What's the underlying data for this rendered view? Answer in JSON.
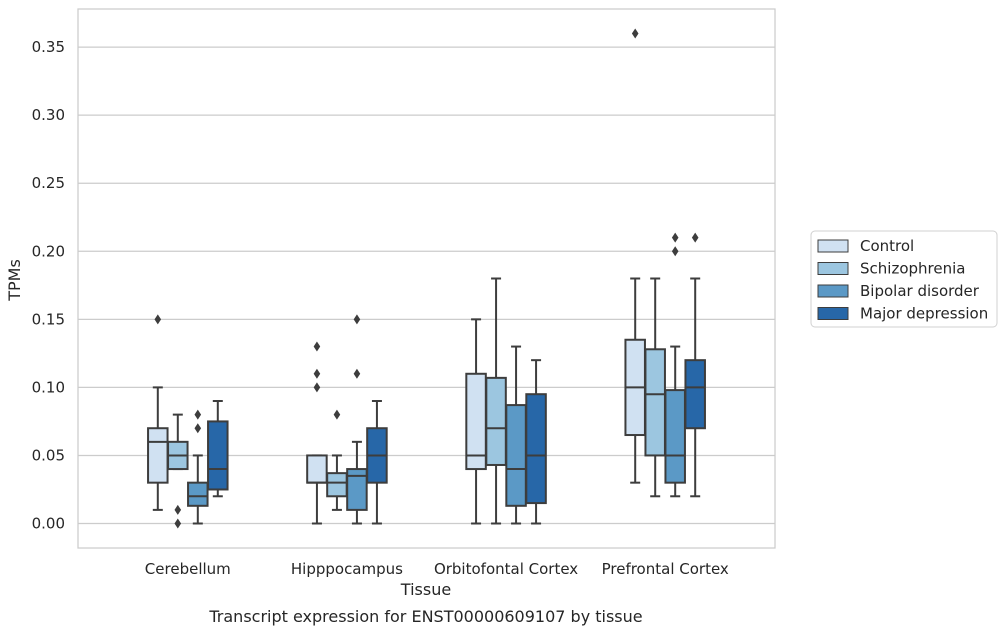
{
  "chart_data": {
    "type": "box",
    "title": "",
    "caption": "Transcript expression for ENST00000609107 by tissue",
    "xlabel": "Tissue",
    "ylabel": "TPMs",
    "ylim": [
      -0.018,
      0.378
    ],
    "yticks": [
      "0.00",
      "0.05",
      "0.10",
      "0.15",
      "0.20",
      "0.25",
      "0.30",
      "0.35"
    ],
    "ytick_values": [
      0,
      0.05,
      0.1,
      0.15,
      0.2,
      0.25,
      0.3,
      0.35
    ],
    "grid": "horizontal",
    "legend_position": "right",
    "categories": [
      "Cerebellum",
      "Hipppocampus",
      "Orbitofontal Cortex",
      "Prefrontal Cortex"
    ],
    "series": [
      {
        "name": "Control",
        "color": "#d0e1f2",
        "boxes": [
          {
            "whislo": 0.01,
            "q1": 0.03,
            "med": 0.06,
            "q3": 0.07,
            "whishi": 0.1,
            "fliers": [
              0.15
            ]
          },
          {
            "whislo": 0.0,
            "q1": 0.03,
            "med": 0.03,
            "q3": 0.05,
            "whishi": 0.05,
            "fliers": [
              0.1,
              0.11,
              0.13
            ]
          },
          {
            "whislo": 0.0,
            "q1": 0.04,
            "med": 0.05,
            "q3": 0.11,
            "whishi": 0.15,
            "fliers": []
          },
          {
            "whislo": 0.03,
            "q1": 0.065,
            "med": 0.1,
            "q3": 0.135,
            "whishi": 0.18,
            "fliers": [
              0.36
            ]
          }
        ]
      },
      {
        "name": "Schizophrenia",
        "color": "#9cc6e0",
        "boxes": [
          {
            "whislo": 0.04,
            "q1": 0.04,
            "med": 0.05,
            "q3": 0.06,
            "whishi": 0.08,
            "fliers": [
              0.0,
              0.01
            ]
          },
          {
            "whislo": 0.01,
            "q1": 0.02,
            "med": 0.03,
            "q3": 0.037,
            "whishi": 0.05,
            "fliers": [
              0.08
            ]
          },
          {
            "whislo": 0.0,
            "q1": 0.043,
            "med": 0.07,
            "q3": 0.107,
            "whishi": 0.18,
            "fliers": []
          },
          {
            "whislo": 0.02,
            "q1": 0.05,
            "med": 0.095,
            "q3": 0.128,
            "whishi": 0.18,
            "fliers": []
          }
        ]
      },
      {
        "name": "Bipolar disorder",
        "color": "#5b99c6",
        "boxes": [
          {
            "whislo": 0.0,
            "q1": 0.013,
            "med": 0.02,
            "q3": 0.03,
            "whishi": 0.05,
            "fliers": [
              0.07,
              0.08
            ]
          },
          {
            "whislo": 0.0,
            "q1": 0.01,
            "med": 0.035,
            "q3": 0.04,
            "whishi": 0.06,
            "fliers": [
              0.11,
              0.15
            ]
          },
          {
            "whislo": 0.0,
            "q1": 0.013,
            "med": 0.04,
            "q3": 0.087,
            "whishi": 0.13,
            "fliers": []
          },
          {
            "whislo": 0.02,
            "q1": 0.03,
            "med": 0.05,
            "q3": 0.098,
            "whishi": 0.13,
            "fliers": [
              0.2,
              0.21
            ]
          }
        ]
      },
      {
        "name": "Major depression",
        "color": "#2767a8",
        "boxes": [
          {
            "whislo": 0.02,
            "q1": 0.025,
            "med": 0.04,
            "q3": 0.075,
            "whishi": 0.09,
            "fliers": []
          },
          {
            "whislo": 0.0,
            "q1": 0.03,
            "med": 0.05,
            "q3": 0.07,
            "whishi": 0.09,
            "fliers": []
          },
          {
            "whislo": 0.0,
            "q1": 0.015,
            "med": 0.05,
            "q3": 0.095,
            "whishi": 0.12,
            "fliers": []
          },
          {
            "whislo": 0.02,
            "q1": 0.07,
            "med": 0.1,
            "q3": 0.12,
            "whishi": 0.18,
            "fliers": [
              0.21
            ]
          }
        ]
      }
    ]
  }
}
